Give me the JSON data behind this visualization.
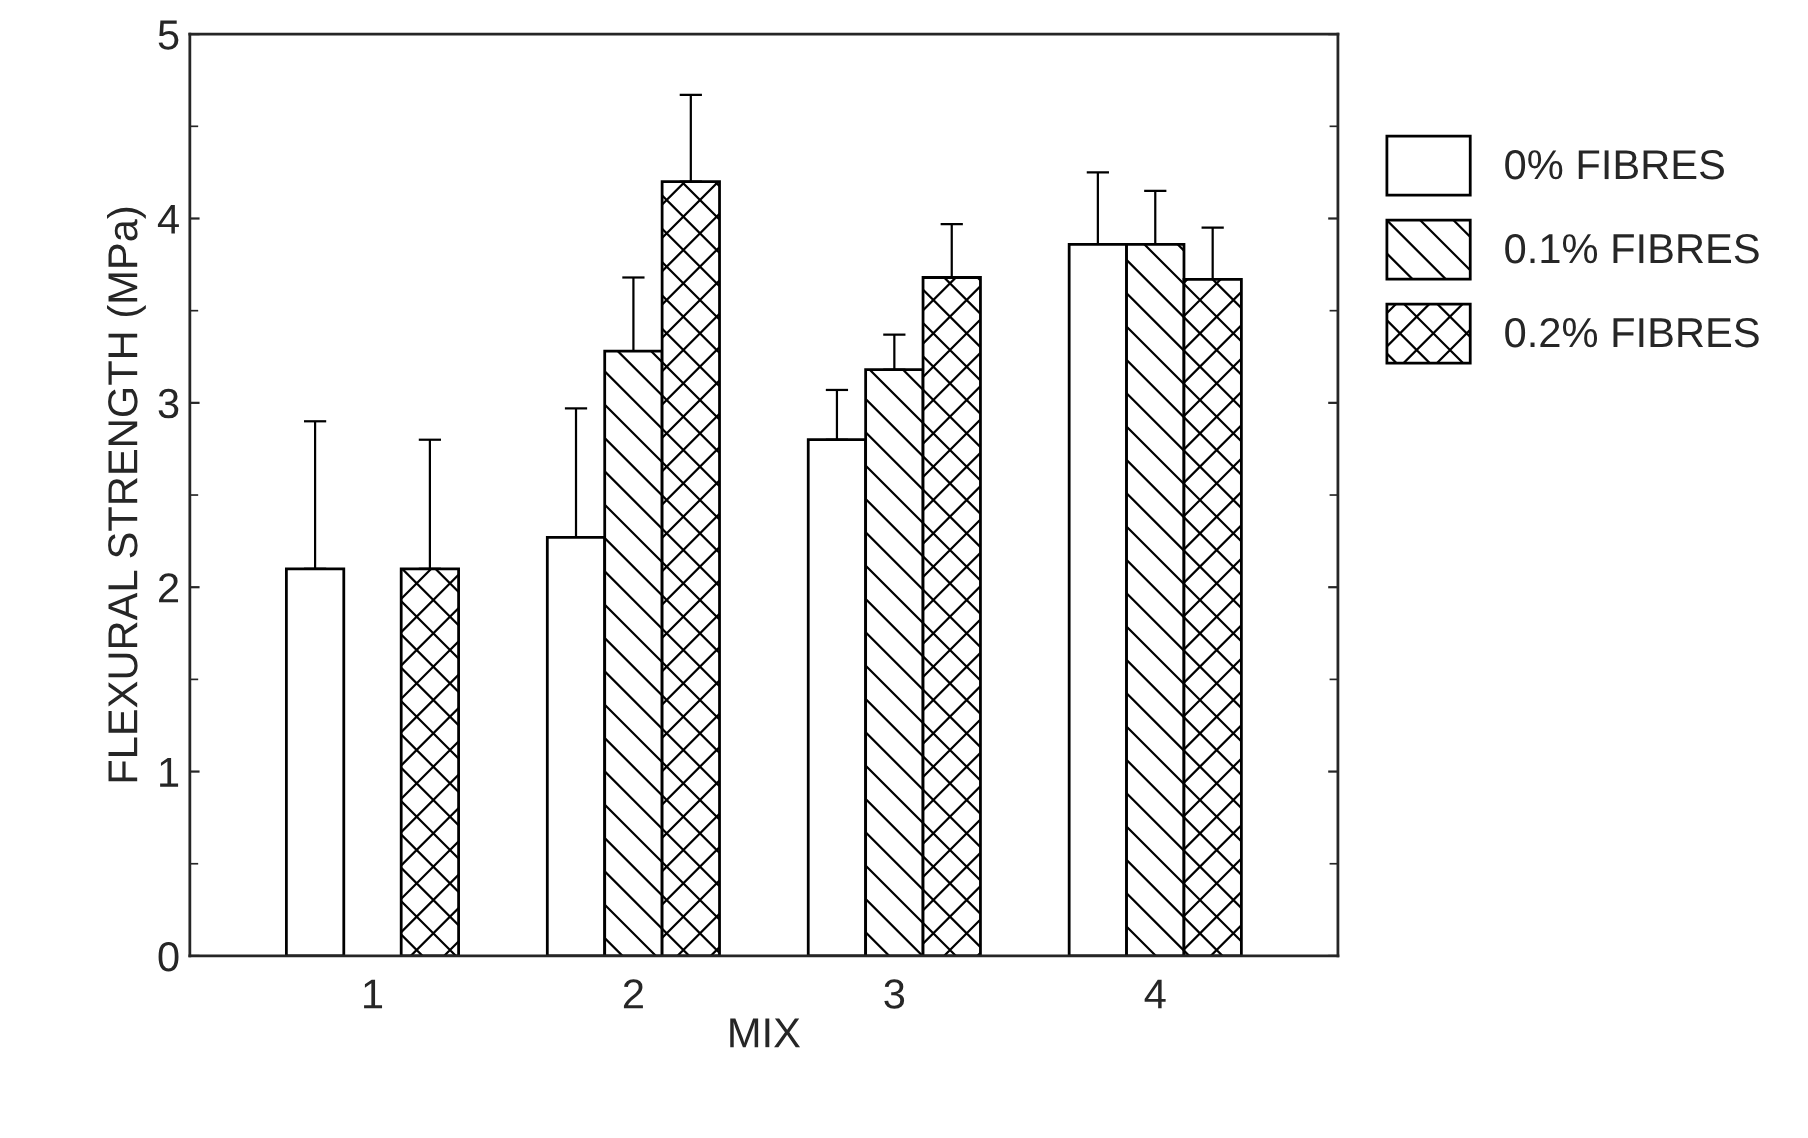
{
  "chart_data": {
    "type": "bar",
    "xlabel": "MIX",
    "ylabel": "FLEXURAL STRENGTH (MPa)",
    "categories": [
      "1",
      "2",
      "3",
      "4"
    ],
    "series": [
      {
        "name": "0% FIBRES",
        "color": "#ffffff",
        "values": [
          2.1,
          2.27,
          2.8,
          3.86
        ],
        "errors": [
          [
            2.1,
            2.9
          ],
          [
            2.27,
            2.97
          ],
          [
            2.8,
            3.07
          ],
          [
            3.86,
            4.25
          ]
        ]
      },
      {
        "name": "0.1% FIBRES",
        "color": "#000000",
        "values": [
          null,
          3.28,
          3.18,
          3.86
        ],
        "errors": [
          null,
          [
            3.28,
            3.68
          ],
          [
            3.18,
            3.37
          ],
          [
            3.86,
            4.15
          ]
        ]
      },
      {
        "name": "0.2% FIBRES",
        "color": "#000000",
        "values": [
          2.1,
          4.2,
          3.68,
          3.67
        ],
        "errors": [
          [
            2.1,
            2.8
          ],
          [
            4.2,
            4.67
          ],
          [
            3.68,
            3.97
          ],
          [
            3.67,
            3.95
          ]
        ]
      }
    ],
    "ylim": [
      0,
      5
    ],
    "yticks": [
      0,
      1,
      2,
      3,
      4,
      5
    ],
    "grid": false,
    "legend": "right"
  }
}
